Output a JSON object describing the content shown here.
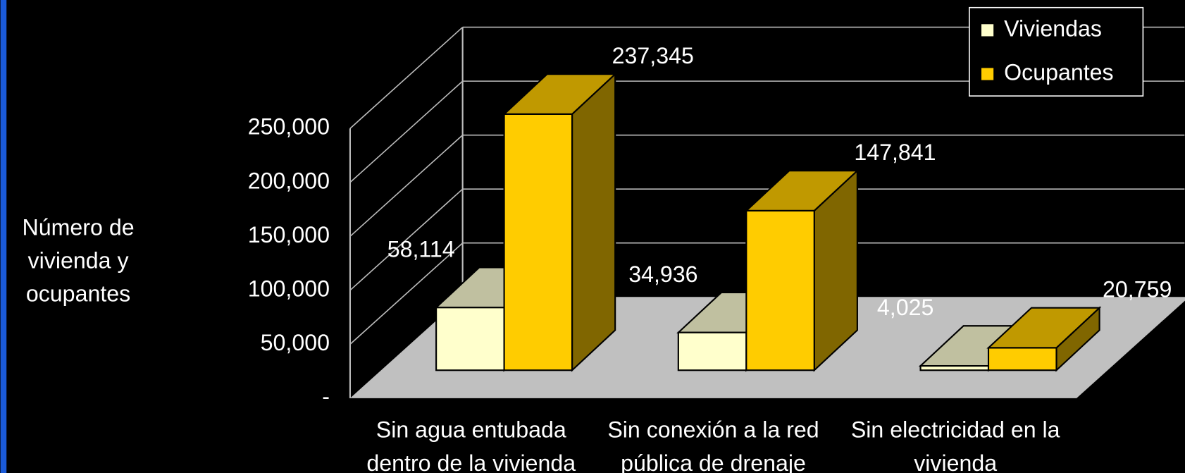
{
  "chart_data": {
    "type": "bar3d",
    "y_label": "Número de vivienda y ocupantes",
    "categories": [
      "Sin agua entubada dentro de la vivienda",
      "Sin conexión a la red pública de drenaje",
      "Sin electricidad en la vivienda"
    ],
    "series": [
      {
        "name": "Viviendas",
        "color": "#ffffcc",
        "values": [
          58114,
          34936,
          4025
        ],
        "value_labels": [
          "58,114",
          "34,936",
          "4,025"
        ]
      },
      {
        "name": "Ocupantes",
        "color": "#ffcc00",
        "values": [
          237345,
          147841,
          20759
        ],
        "value_labels": [
          "237,345",
          "147,841",
          "20,759"
        ]
      }
    ],
    "ylim": [
      0,
      250000
    ],
    "yticks": [
      {
        "value": 0,
        "label": "-"
      },
      {
        "value": 50000,
        "label": "50,000"
      },
      {
        "value": 100000,
        "label": "100,000"
      },
      {
        "value": 150000,
        "label": "150,000"
      },
      {
        "value": 200000,
        "label": "200,000"
      },
      {
        "value": 250000,
        "label": "250,000"
      }
    ],
    "grid": true,
    "legend": "top-right"
  }
}
